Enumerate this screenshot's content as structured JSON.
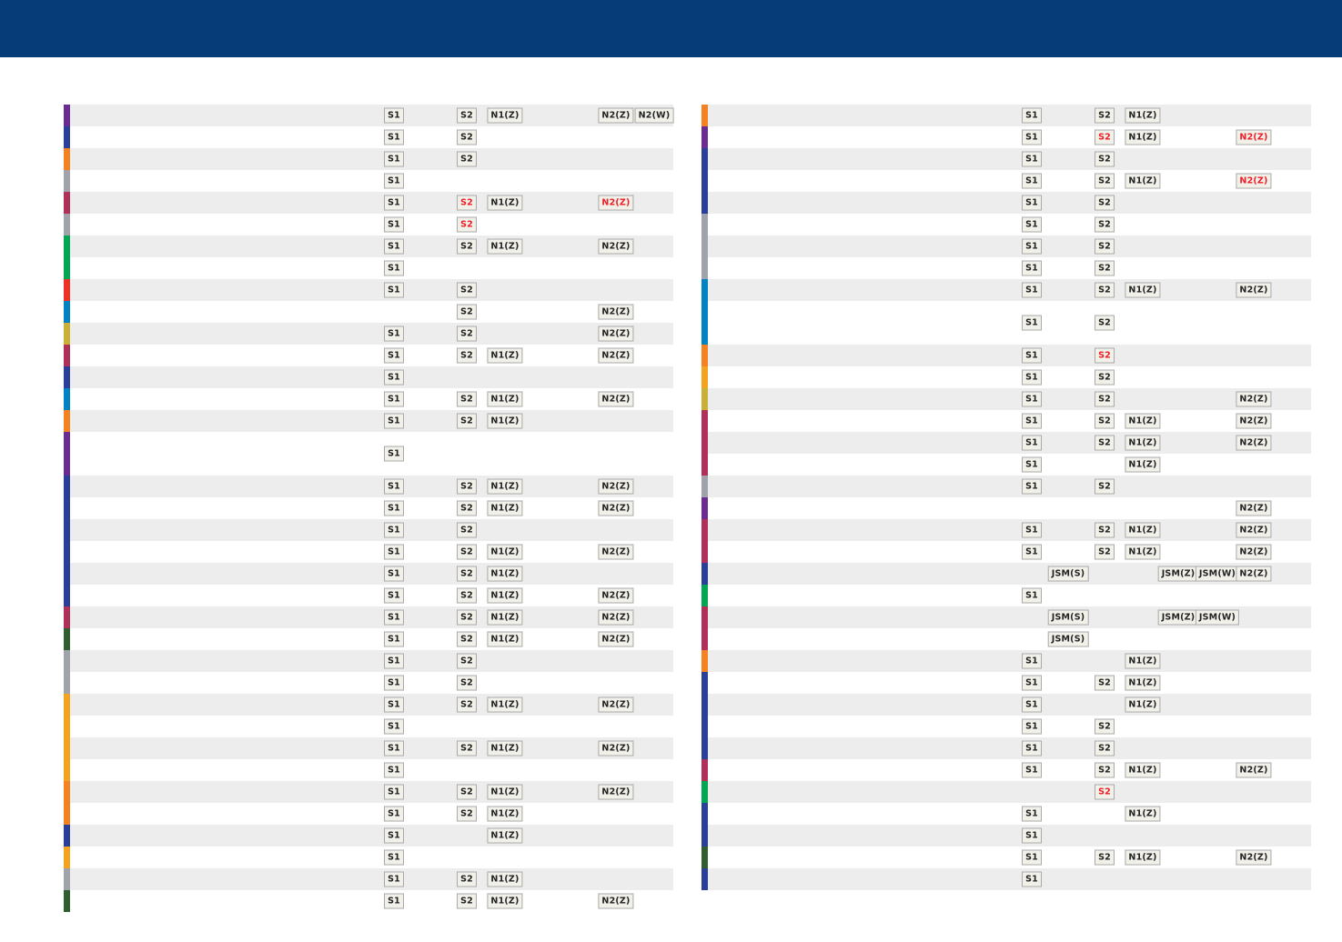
{
  "colors": {
    "header": "#063d78",
    "purple": "#6a2c91",
    "blue": "#2a3f98",
    "orange": "#f58220",
    "gray": "#a0a3ac",
    "crimson": "#b0305a",
    "green": "#00a651",
    "red": "#ee3124",
    "teal": "#0082c3",
    "olive": "#c9b037",
    "amber": "#f4a31f",
    "darkgreen": "#2f5e2f"
  },
  "left_rows": [
    {
      "bar": "purple",
      "b": [
        [
          "s1",
          "S1"
        ],
        [
          "s2",
          "S2"
        ],
        [
          "n1",
          "N1(Z)"
        ],
        [
          "n2",
          "N2(Z)"
        ],
        [
          "n2w",
          "N2(W)"
        ]
      ]
    },
    {
      "bar": "blue",
      "b": [
        [
          "s1",
          "S1"
        ],
        [
          "s2",
          "S2"
        ]
      ]
    },
    {
      "bar": "orange",
      "b": [
        [
          "s1",
          "S1"
        ],
        [
          "s2",
          "S2"
        ]
      ]
    },
    {
      "bar": "gray",
      "b": [
        [
          "s1",
          "S1"
        ]
      ]
    },
    {
      "bar": "crimson",
      "b": [
        [
          "s1",
          "S1"
        ],
        [
          "s2",
          "S2",
          true
        ],
        [
          "n1",
          "N1(Z)"
        ],
        [
          "n2",
          "N2(Z)",
          true
        ]
      ]
    },
    {
      "bar": "gray",
      "b": [
        [
          "s1",
          "S1"
        ],
        [
          "s2",
          "S2",
          true
        ]
      ]
    },
    {
      "bar": "green",
      "b": [
        [
          "s1",
          "S1"
        ],
        [
          "s2",
          "S2"
        ],
        [
          "n1",
          "N1(Z)"
        ],
        [
          "n2",
          "N2(Z)"
        ]
      ]
    },
    {
      "bar": "green",
      "b": [
        [
          "s1",
          "S1"
        ]
      ]
    },
    {
      "bar": "red",
      "b": [
        [
          "s1",
          "S1"
        ],
        [
          "s2",
          "S2"
        ]
      ]
    },
    {
      "bar": "teal",
      "b": [
        [
          "s2",
          "S2"
        ],
        [
          "n2",
          "N2(Z)"
        ]
      ]
    },
    {
      "bar": "olive",
      "b": [
        [
          "s1",
          "S1"
        ],
        [
          "s2",
          "S2"
        ],
        [
          "n2",
          "N2(Z)"
        ]
      ]
    },
    {
      "bar": "crimson",
      "b": [
        [
          "s1",
          "S1"
        ],
        [
          "s2",
          "S2"
        ],
        [
          "n1",
          "N1(Z)"
        ],
        [
          "n2",
          "N2(Z)"
        ]
      ]
    },
    {
      "bar": "blue",
      "b": [
        [
          "s1",
          "S1"
        ]
      ]
    },
    {
      "bar": "teal",
      "b": [
        [
          "s1",
          "S1"
        ],
        [
          "s2",
          "S2"
        ],
        [
          "n1",
          "N1(Z)"
        ],
        [
          "n2",
          "N2(Z)"
        ]
      ]
    },
    {
      "bar": "orange",
      "b": [
        [
          "s1",
          "S1"
        ],
        [
          "s2",
          "S2"
        ],
        [
          "n1",
          "N1(Z)"
        ]
      ]
    },
    {
      "bar": "purple",
      "tall": true,
      "b": [
        [
          "s1",
          "S1"
        ]
      ]
    },
    {
      "bar": "blue",
      "b": [
        [
          "s1",
          "S1"
        ],
        [
          "s2",
          "S2"
        ],
        [
          "n1",
          "N1(Z)"
        ],
        [
          "n2",
          "N2(Z)"
        ]
      ]
    },
    {
      "bar": "blue",
      "b": [
        [
          "s1",
          "S1"
        ],
        [
          "s2",
          "S2"
        ],
        [
          "n1",
          "N1(Z)"
        ],
        [
          "n2",
          "N2(Z)"
        ]
      ]
    },
    {
      "bar": "blue",
      "b": [
        [
          "s1",
          "S1"
        ],
        [
          "s2",
          "S2"
        ]
      ]
    },
    {
      "bar": "blue",
      "b": [
        [
          "s1",
          "S1"
        ],
        [
          "s2",
          "S2"
        ],
        [
          "n1",
          "N1(Z)"
        ],
        [
          "n2",
          "N2(Z)"
        ]
      ]
    },
    {
      "bar": "blue",
      "b": [
        [
          "s1",
          "S1"
        ],
        [
          "s2",
          "S2"
        ],
        [
          "n1",
          "N1(Z)"
        ]
      ]
    },
    {
      "bar": "blue",
      "b": [
        [
          "s1",
          "S1"
        ],
        [
          "s2",
          "S2"
        ],
        [
          "n1",
          "N1(Z)"
        ],
        [
          "n2",
          "N2(Z)"
        ]
      ]
    },
    {
      "bar": "crimson",
      "b": [
        [
          "s1",
          "S1"
        ],
        [
          "s2",
          "S2"
        ],
        [
          "n1",
          "N1(Z)"
        ],
        [
          "n2",
          "N2(Z)"
        ]
      ]
    },
    {
      "bar": "darkgreen",
      "b": [
        [
          "s1",
          "S1"
        ],
        [
          "s2",
          "S2"
        ],
        [
          "n1",
          "N1(Z)"
        ],
        [
          "n2",
          "N2(Z)"
        ]
      ]
    },
    {
      "bar": "gray",
      "b": [
        [
          "s1",
          "S1"
        ],
        [
          "s2",
          "S2"
        ]
      ]
    },
    {
      "bar": "gray",
      "b": [
        [
          "s1",
          "S1"
        ],
        [
          "s2",
          "S2"
        ]
      ]
    },
    {
      "bar": "amber",
      "b": [
        [
          "s1",
          "S1"
        ],
        [
          "s2",
          "S2"
        ],
        [
          "n1",
          "N1(Z)"
        ],
        [
          "n2",
          "N2(Z)"
        ]
      ]
    },
    {
      "bar": "amber",
      "b": [
        [
          "s1",
          "S1"
        ]
      ]
    },
    {
      "bar": "amber",
      "b": [
        [
          "s1",
          "S1"
        ],
        [
          "s2",
          "S2"
        ],
        [
          "n1",
          "N1(Z)"
        ],
        [
          "n2",
          "N2(Z)"
        ]
      ]
    },
    {
      "bar": "amber",
      "b": [
        [
          "s1",
          "S1"
        ]
      ]
    },
    {
      "bar": "orange",
      "b": [
        [
          "s1",
          "S1"
        ],
        [
          "s2",
          "S2"
        ],
        [
          "n1",
          "N1(Z)"
        ],
        [
          "n2",
          "N2(Z)"
        ]
      ]
    },
    {
      "bar": "orange",
      "b": [
        [
          "s1",
          "S1"
        ],
        [
          "s2",
          "S2"
        ],
        [
          "n1",
          "N1(Z)"
        ]
      ]
    },
    {
      "bar": "blue",
      "b": [
        [
          "s1",
          "S1"
        ],
        [
          "n1",
          "N1(Z)"
        ]
      ]
    },
    {
      "bar": "amber",
      "b": [
        [
          "s1",
          "S1"
        ]
      ]
    },
    {
      "bar": "gray",
      "b": [
        [
          "s1",
          "S1"
        ],
        [
          "s2",
          "S2"
        ],
        [
          "n1",
          "N1(Z)"
        ]
      ]
    },
    {
      "bar": "darkgreen",
      "b": [
        [
          "s1",
          "S1"
        ],
        [
          "s2",
          "S2"
        ],
        [
          "n1",
          "N1(Z)"
        ],
        [
          "n2",
          "N2(Z)"
        ]
      ]
    }
  ],
  "right_rows": [
    {
      "bar": "orange",
      "b": [
        [
          "s1",
          "S1"
        ],
        [
          "s2",
          "S2"
        ],
        [
          "n1",
          "N1(Z)"
        ]
      ]
    },
    {
      "bar": "purple",
      "b": [
        [
          "s1",
          "S1"
        ],
        [
          "s2",
          "S2",
          true
        ],
        [
          "n1",
          "N1(Z)"
        ],
        [
          "n2",
          "N2(Z)",
          true
        ]
      ]
    },
    {
      "bar": "blue",
      "b": [
        [
          "s1",
          "S1"
        ],
        [
          "s2",
          "S2"
        ]
      ]
    },
    {
      "bar": "blue",
      "b": [
        [
          "s1",
          "S1"
        ],
        [
          "s2",
          "S2"
        ],
        [
          "n1",
          "N1(Z)"
        ],
        [
          "n2",
          "N2(Z)",
          true
        ]
      ]
    },
    {
      "bar": "blue",
      "b": [
        [
          "s1",
          "S1"
        ],
        [
          "s2",
          "S2"
        ]
      ]
    },
    {
      "bar": "gray",
      "b": [
        [
          "s1",
          "S1"
        ],
        [
          "s2",
          "S2"
        ]
      ]
    },
    {
      "bar": "gray",
      "b": [
        [
          "s1",
          "S1"
        ],
        [
          "s2",
          "S2"
        ]
      ]
    },
    {
      "bar": "gray",
      "b": [
        [
          "s1",
          "S1"
        ],
        [
          "s2",
          "S2"
        ]
      ]
    },
    {
      "bar": "teal",
      "b": [
        [
          "s1",
          "S1"
        ],
        [
          "s2",
          "S2"
        ],
        [
          "n1",
          "N1(Z)"
        ],
        [
          "n2",
          "N2(Z)"
        ]
      ]
    },
    {
      "bar": "teal",
      "tall": true,
      "b": [
        [
          "s1",
          "S1"
        ],
        [
          "s2",
          "S2"
        ]
      ]
    },
    {
      "bar": "orange",
      "b": [
        [
          "s1",
          "S1"
        ],
        [
          "s2",
          "S2",
          true
        ]
      ]
    },
    {
      "bar": "amber",
      "b": [
        [
          "s1",
          "S1"
        ],
        [
          "s2",
          "S2"
        ]
      ]
    },
    {
      "bar": "olive",
      "b": [
        [
          "s1",
          "S1"
        ],
        [
          "s2",
          "S2"
        ],
        [
          "n2",
          "N2(Z)"
        ]
      ]
    },
    {
      "bar": "crimson",
      "b": [
        [
          "s1",
          "S1"
        ],
        [
          "s2",
          "S2"
        ],
        [
          "n1",
          "N1(Z)"
        ],
        [
          "n2",
          "N2(Z)"
        ]
      ]
    },
    {
      "bar": "crimson",
      "b": [
        [
          "s1",
          "S1"
        ],
        [
          "s2",
          "S2"
        ],
        [
          "n1",
          "N1(Z)"
        ],
        [
          "n2",
          "N2(Z)"
        ]
      ]
    },
    {
      "bar": "crimson",
      "b": [
        [
          "s1",
          "S1"
        ],
        [
          "n1",
          "N1(Z)"
        ]
      ]
    },
    {
      "bar": "gray",
      "b": [
        [
          "s1",
          "S1"
        ],
        [
          "s2",
          "S2"
        ]
      ]
    },
    {
      "bar": "purple",
      "b": [
        [
          "n2",
          "N2(Z)"
        ]
      ]
    },
    {
      "bar": "crimson",
      "b": [
        [
          "s1",
          "S1"
        ],
        [
          "s2",
          "S2"
        ],
        [
          "n1",
          "N1(Z)"
        ],
        [
          "n2",
          "N2(Z)"
        ]
      ]
    },
    {
      "bar": "crimson",
      "b": [
        [
          "s1",
          "S1"
        ],
        [
          "s2",
          "S2"
        ],
        [
          "n1",
          "N1(Z)"
        ],
        [
          "n2",
          "N2(Z)"
        ]
      ]
    },
    {
      "bar": "blue",
      "b": [
        [
          "jsms",
          "JSM(S)"
        ],
        [
          "jsmz",
          "JSM(Z)"
        ],
        [
          "jsmw",
          "JSM(W)"
        ],
        [
          "n2",
          "N2(Z)"
        ]
      ]
    },
    {
      "bar": "green",
      "b": [
        [
          "s1",
          "S1"
        ]
      ]
    },
    {
      "bar": "crimson",
      "b": [
        [
          "jsms",
          "JSM(S)"
        ],
        [
          "jsmz",
          "JSM(Z)"
        ],
        [
          "jsmw",
          "JSM(W)"
        ]
      ]
    },
    {
      "bar": "crimson",
      "b": [
        [
          "jsms",
          "JSM(S)"
        ]
      ]
    },
    {
      "bar": "orange",
      "b": [
        [
          "s1",
          "S1"
        ],
        [
          "n1",
          "N1(Z)"
        ]
      ]
    },
    {
      "bar": "blue",
      "b": [
        [
          "s1",
          "S1"
        ],
        [
          "s2",
          "S2"
        ],
        [
          "n1",
          "N1(Z)"
        ]
      ]
    },
    {
      "bar": "blue",
      "b": [
        [
          "s1",
          "S1"
        ],
        [
          "n1",
          "N1(Z)"
        ]
      ]
    },
    {
      "bar": "blue",
      "b": [
        [
          "s1",
          "S1"
        ],
        [
          "s2",
          "S2"
        ]
      ]
    },
    {
      "bar": "blue",
      "b": [
        [
          "s1",
          "S1"
        ],
        [
          "s2",
          "S2"
        ]
      ]
    },
    {
      "bar": "crimson",
      "b": [
        [
          "s1",
          "S1"
        ],
        [
          "s2",
          "S2"
        ],
        [
          "n1",
          "N1(Z)"
        ],
        [
          "n2",
          "N2(Z)"
        ]
      ]
    },
    {
      "bar": "green",
      "b": [
        [
          "s2",
          "S2",
          true
        ]
      ]
    },
    {
      "bar": "blue",
      "b": [
        [
          "s1",
          "S1"
        ],
        [
          "n1",
          "N1(Z)"
        ]
      ]
    },
    {
      "bar": "blue",
      "b": [
        [
          "s1",
          "S1"
        ]
      ]
    },
    {
      "bar": "darkgreen",
      "b": [
        [
          "s1",
          "S1"
        ],
        [
          "s2",
          "S2"
        ],
        [
          "n1",
          "N1(Z)"
        ],
        [
          "n2",
          "N2(Z)"
        ]
      ]
    },
    {
      "bar": "blue",
      "b": [
        [
          "s1",
          "S1"
        ]
      ]
    }
  ]
}
